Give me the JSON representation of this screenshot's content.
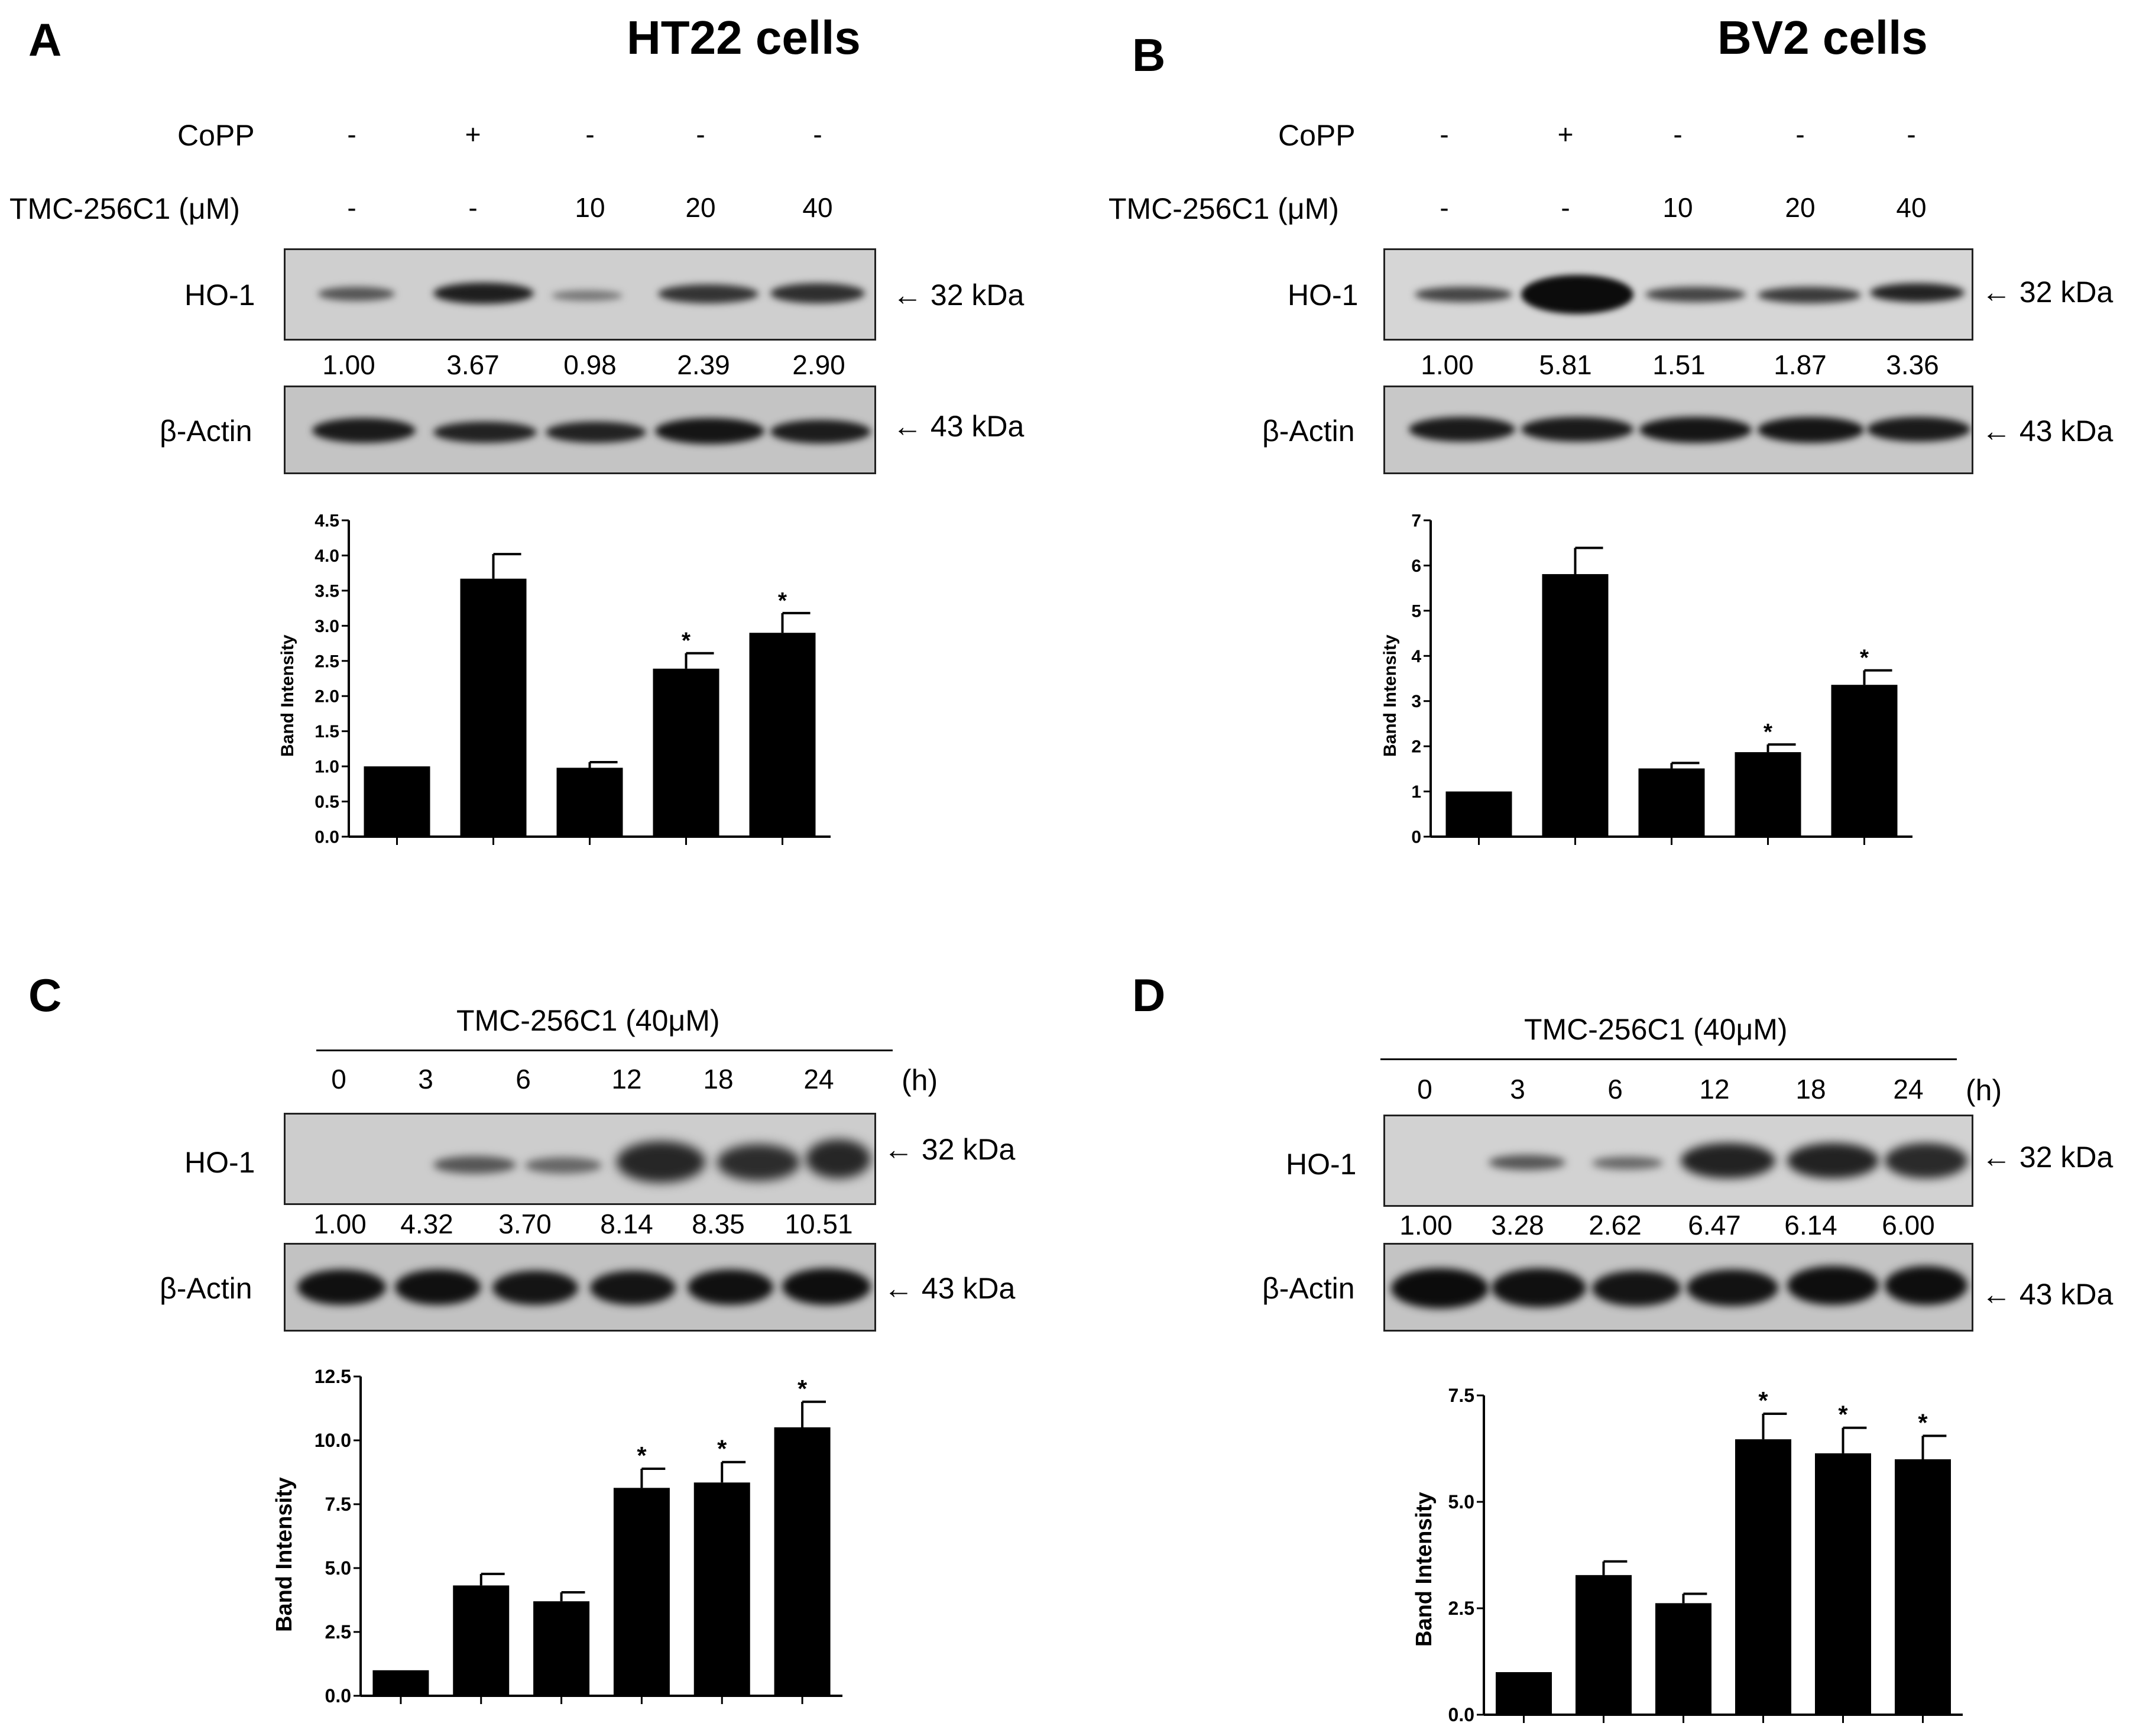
{
  "common": {
    "band_intensity_label": "Band Intensity",
    "ho1_label": "HO-1",
    "actin_label": "β-Actin",
    "kda32": "← 32 kDa",
    "kda43": "← 43 kDa"
  },
  "panelA": {
    "letter": "A",
    "title": "HT22 cells",
    "copp_label": "CoPP",
    "copp_values": [
      "-",
      "+",
      "-",
      "-",
      "-"
    ],
    "tmc_label": "TMC-256C1 (μM)",
    "tmc_values": [
      "-",
      "-",
      "10",
      "20",
      "40"
    ],
    "ratios": [
      "1.00",
      "3.67",
      "0.98",
      "2.39",
      "2.90"
    ]
  },
  "panelB": {
    "letter": "B",
    "title": "BV2 cells",
    "copp_label": "CoPP",
    "copp_values": [
      "-",
      "+",
      "-",
      "-",
      "-"
    ],
    "tmc_label": "TMC-256C1 (μM)",
    "tmc_values": [
      "-",
      "-",
      "10",
      "20",
      "40"
    ],
    "ratios": [
      "1.00",
      "5.81",
      "1.51",
      "1.87",
      "3.36"
    ]
  },
  "panelC": {
    "letter": "C",
    "treatment_label": "TMC-256C1 (40μM)",
    "time_values": [
      "0",
      "3",
      "6",
      "12",
      "18",
      "24"
    ],
    "time_unit": "(h)",
    "ratios": [
      "1.00",
      "4.32",
      "3.70",
      "8.14",
      "8.35",
      "10.51"
    ]
  },
  "panelD": {
    "letter": "D",
    "treatment_label": "TMC-256C1 (40μM)",
    "time_values": [
      "0",
      "3",
      "6",
      "12",
      "18",
      "24"
    ],
    "time_unit": "(h)",
    "ratios": [
      "1.00",
      "3.28",
      "2.62",
      "6.47",
      "6.14",
      "6.00"
    ]
  },
  "chart_data": [
    {
      "id": "A",
      "type": "bar",
      "ylabel": "Band Intensity",
      "ylim": [
        0,
        4.5
      ],
      "yticks": [
        "0.0",
        "0.5",
        "1.0",
        "1.5",
        "2.0",
        "2.5",
        "3.0",
        "3.5",
        "4.0",
        "4.5"
      ],
      "values": [
        1.0,
        3.67,
        0.98,
        2.39,
        2.9
      ],
      "errors": [
        0,
        0.35,
        0.08,
        0.22,
        0.28
      ],
      "significance": [
        "",
        "",
        "",
        "*",
        "*"
      ]
    },
    {
      "id": "B",
      "type": "bar",
      "ylabel": "Band Intensity",
      "ylim": [
        0,
        7
      ],
      "yticks": [
        "0",
        "1",
        "2",
        "3",
        "4",
        "5",
        "6",
        "7"
      ],
      "values": [
        1.0,
        5.81,
        1.51,
        1.87,
        3.36
      ],
      "errors": [
        0,
        0.58,
        0.12,
        0.17,
        0.32
      ],
      "significance": [
        "",
        "",
        "",
        "*",
        "*"
      ]
    },
    {
      "id": "C",
      "type": "bar",
      "ylabel": "Band Intensity",
      "ylim": [
        0,
        12.5
      ],
      "yticks": [
        "0.0",
        "2.5",
        "5.0",
        "7.5",
        "10.0",
        "12.5"
      ],
      "values": [
        1.0,
        4.32,
        3.7,
        8.14,
        8.35,
        10.51
      ],
      "errors": [
        0,
        0.45,
        0.35,
        0.75,
        0.8,
        1.0
      ],
      "significance": [
        "",
        "",
        "",
        "*",
        "*",
        "*"
      ]
    },
    {
      "id": "D",
      "type": "bar",
      "ylabel": "Band Intensity",
      "ylim": [
        0,
        7.5
      ],
      "yticks": [
        "0.0",
        "2.5",
        "5.0",
        "7.5"
      ],
      "values": [
        1.0,
        3.28,
        2.62,
        6.47,
        6.14,
        6.0
      ],
      "errors": [
        0,
        0.32,
        0.22,
        0.6,
        0.6,
        0.55
      ],
      "significance": [
        "",
        "",
        "",
        "*",
        "*",
        "*"
      ]
    }
  ]
}
